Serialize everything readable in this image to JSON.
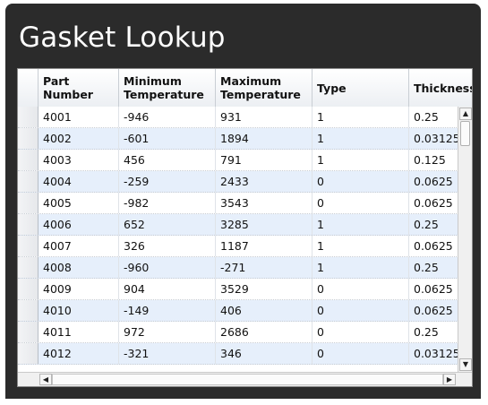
{
  "window": {
    "title": "Gasket Lookup"
  },
  "grid": {
    "columns": [
      {
        "key": "part",
        "label": "Part\nNumber"
      },
      {
        "key": "min",
        "label": "Minimum\nTemperature"
      },
      {
        "key": "max",
        "label": "Maximum\nTemperature"
      },
      {
        "key": "type",
        "label": "Type"
      },
      {
        "key": "thick",
        "label": "Thickness"
      }
    ],
    "rows": [
      [
        "4001",
        "-946",
        "931",
        "1",
        "0.25"
      ],
      [
        "4002",
        "-601",
        "1894",
        "1",
        "0.03125"
      ],
      [
        "4003",
        "456",
        "791",
        "1",
        "0.125"
      ],
      [
        "4004",
        "-259",
        "2433",
        "0",
        "0.0625"
      ],
      [
        "4005",
        "-982",
        "3543",
        "0",
        "0.0625"
      ],
      [
        "4006",
        "652",
        "3285",
        "1",
        "0.25"
      ],
      [
        "4007",
        "326",
        "1187",
        "1",
        "0.0625"
      ],
      [
        "4008",
        "-960",
        "-271",
        "1",
        "0.25"
      ],
      [
        "4009",
        "904",
        "3529",
        "0",
        "0.0625"
      ],
      [
        "4010",
        "-149",
        "406",
        "0",
        "0.0625"
      ],
      [
        "4011",
        "972",
        "2686",
        "0",
        "0.25"
      ],
      [
        "4012",
        "-321",
        "346",
        "0",
        "0.03125"
      ]
    ]
  },
  "scrollbars": {
    "up_arrow": "▲",
    "down_arrow": "▼",
    "left_arrow": "◀",
    "right_arrow": "▶"
  }
}
